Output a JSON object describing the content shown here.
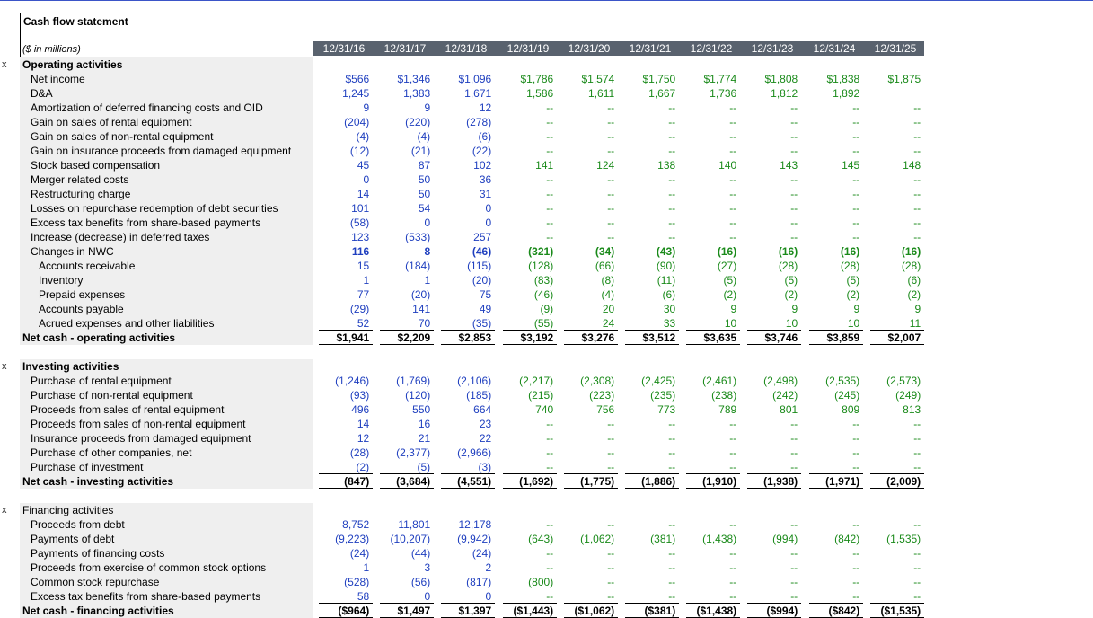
{
  "sheet": {
    "title": "Cash flow statement",
    "units": "($ in millions)",
    "row_marker": "x"
  },
  "years": [
    "12/31/16",
    "12/31/17",
    "12/31/18",
    "12/31/19",
    "12/31/20",
    "12/31/21",
    "12/31/22",
    "12/31/23",
    "12/31/24",
    "12/31/25"
  ],
  "colors": {
    "historical": "#1f3fbf",
    "projected": "#1a8a1a",
    "header_bg": "#59626e",
    "label_bg": "#efefef"
  },
  "sections": [
    {
      "title": "Operating activities",
      "title_bold": true,
      "rows": [
        {
          "label": "Net income",
          "indent": 1,
          "values": [
            "$566",
            "$1,346",
            "$1,096",
            "$1,786",
            "$1,574",
            "$1,750",
            "$1,774",
            "$1,808",
            "$1,838",
            "$1,875"
          ]
        },
        {
          "label": "D&A",
          "indent": 1,
          "values": [
            "1,245",
            "1,383",
            "1,671",
            "1,586",
            "1,611",
            "1,667",
            "1,736",
            "1,812",
            "1,892",
            ""
          ]
        },
        {
          "label": "Amortization of deferred financing costs and OID",
          "indent": 1,
          "values": [
            "9",
            "9",
            "12",
            "--",
            "--",
            "--",
            "--",
            "--",
            "--",
            "--"
          ]
        },
        {
          "label": "Gain on sales of rental equipment",
          "indent": 1,
          "values": [
            "(204)",
            "(220)",
            "(278)",
            "--",
            "--",
            "--",
            "--",
            "--",
            "--",
            "--"
          ]
        },
        {
          "label": "Gain on sales of non-rental equipment",
          "indent": 1,
          "values": [
            "(4)",
            "(4)",
            "(6)",
            "--",
            "--",
            "--",
            "--",
            "--",
            "--",
            "--"
          ]
        },
        {
          "label": "Gain on insurance proceeds from damaged equipment",
          "indent": 1,
          "values": [
            "(12)",
            "(21)",
            "(22)",
            "--",
            "--",
            "--",
            "--",
            "--",
            "--",
            "--"
          ]
        },
        {
          "label": "Stock based compensation",
          "indent": 1,
          "values": [
            "45",
            "87",
            "102",
            "141",
            "124",
            "138",
            "140",
            "143",
            "145",
            "148"
          ]
        },
        {
          "label": "Merger related costs",
          "indent": 1,
          "values": [
            "0",
            "50",
            "36",
            "--",
            "--",
            "--",
            "--",
            "--",
            "--",
            "--"
          ]
        },
        {
          "label": "Restructuring charge",
          "indent": 1,
          "values": [
            "14",
            "50",
            "31",
            "--",
            "--",
            "--",
            "--",
            "--",
            "--",
            "--"
          ]
        },
        {
          "label": "Losses on repurchase redemption of debt securities",
          "indent": 1,
          "values": [
            "101",
            "54",
            "0",
            "--",
            "--",
            "--",
            "--",
            "--",
            "--",
            "--"
          ]
        },
        {
          "label": "Excess tax benefits from share-based payments",
          "indent": 1,
          "values": [
            "(58)",
            "0",
            "0",
            "--",
            "--",
            "--",
            "--",
            "--",
            "--",
            "--"
          ]
        },
        {
          "label": "Increase (decrease) in deferred taxes",
          "indent": 1,
          "values": [
            "123",
            "(533)",
            "257",
            "--",
            "--",
            "--",
            "--",
            "--",
            "--",
            "--"
          ]
        },
        {
          "label": "Changes in NWC",
          "indent": 1,
          "bold_values": true,
          "values": [
            "116",
            "8",
            "(46)",
            "(321)",
            "(34)",
            "(43)",
            "(16)",
            "(16)",
            "(16)",
            "(16)"
          ]
        },
        {
          "label": "Accounts receivable",
          "indent": 2,
          "values": [
            "15",
            "(184)",
            "(115)",
            "(128)",
            "(66)",
            "(90)",
            "(27)",
            "(28)",
            "(28)",
            "(28)"
          ]
        },
        {
          "label": "Inventory",
          "indent": 2,
          "values": [
            "1",
            "1",
            "(20)",
            "(83)",
            "(8)",
            "(11)",
            "(5)",
            "(5)",
            "(5)",
            "(6)"
          ]
        },
        {
          "label": "Prepaid expenses",
          "indent": 2,
          "values": [
            "77",
            "(20)",
            "75",
            "(46)",
            "(4)",
            "(6)",
            "(2)",
            "(2)",
            "(2)",
            "(2)"
          ]
        },
        {
          "label": "Accounts payable",
          "indent": 2,
          "values": [
            "(29)",
            "141",
            "49",
            "(9)",
            "20",
            "30",
            "9",
            "9",
            "9",
            "9"
          ]
        },
        {
          "label": "Acrued expenses and other liabilities",
          "indent": 2,
          "underline": true,
          "values": [
            "52",
            "70",
            "(35)",
            "(55)",
            "24",
            "33",
            "10",
            "10",
            "10",
            "11"
          ]
        }
      ],
      "total": {
        "label": "Net cash - operating activities",
        "values": [
          "$1,941",
          "$2,209",
          "$2,853",
          "$3,192",
          "$3,276",
          "$3,512",
          "$3,635",
          "$3,746",
          "$3,859",
          "$2,007"
        ]
      }
    },
    {
      "title": "Investing activities",
      "title_bold": true,
      "rows": [
        {
          "label": "Purchase of rental equipment",
          "indent": 1,
          "values": [
            "(1,246)",
            "(1,769)",
            "(2,106)",
            "(2,217)",
            "(2,308)",
            "(2,425)",
            "(2,461)",
            "(2,498)",
            "(2,535)",
            "(2,573)"
          ]
        },
        {
          "label": "Purchase of non-rental equipment",
          "indent": 1,
          "values": [
            "(93)",
            "(120)",
            "(185)",
            "(215)",
            "(223)",
            "(235)",
            "(238)",
            "(242)",
            "(245)",
            "(249)"
          ]
        },
        {
          "label": "Proceeds from sales of rental equipment",
          "indent": 1,
          "values": [
            "496",
            "550",
            "664",
            "740",
            "756",
            "773",
            "789",
            "801",
            "809",
            "813"
          ]
        },
        {
          "label": "Proceeds from sales of non-rental equipment",
          "indent": 1,
          "values": [
            "14",
            "16",
            "23",
            "--",
            "--",
            "--",
            "--",
            "--",
            "--",
            "--"
          ]
        },
        {
          "label": "Insurance proceeds from damaged equipment",
          "indent": 1,
          "values": [
            "12",
            "21",
            "22",
            "--",
            "--",
            "--",
            "--",
            "--",
            "--",
            "--"
          ]
        },
        {
          "label": "Purchase of other companies, net",
          "indent": 1,
          "values": [
            "(28)",
            "(2,377)",
            "(2,966)",
            "--",
            "--",
            "--",
            "--",
            "--",
            "--",
            "--"
          ]
        },
        {
          "label": "Purchase of investment",
          "indent": 1,
          "underline": true,
          "values": [
            "(2)",
            "(5)",
            "(3)",
            "--",
            "--",
            "--",
            "--",
            "--",
            "--",
            "--"
          ]
        }
      ],
      "total": {
        "label": "Net cash - investing activities",
        "values": [
          "(847)",
          "(3,684)",
          "(4,551)",
          "(1,692)",
          "(1,775)",
          "(1,886)",
          "(1,910)",
          "(1,938)",
          "(1,971)",
          "(2,009)"
        ]
      }
    },
    {
      "title": "Financing activities",
      "title_bold": false,
      "rows": [
        {
          "label": "Proceeds from debt",
          "indent": 1,
          "values": [
            "8,752",
            "11,801",
            "12,178",
            "--",
            "--",
            "--",
            "--",
            "--",
            "--",
            "--"
          ]
        },
        {
          "label": "Payments of debt",
          "indent": 1,
          "values": [
            "(9,223)",
            "(10,207)",
            "(9,942)",
            "(643)",
            "(1,062)",
            "(381)",
            "(1,438)",
            "(994)",
            "(842)",
            "(1,535)"
          ]
        },
        {
          "label": "Payments of financing costs",
          "indent": 1,
          "values": [
            "(24)",
            "(44)",
            "(24)",
            "--",
            "--",
            "--",
            "--",
            "--",
            "--",
            "--"
          ]
        },
        {
          "label": "Proceeds from exercise of common stock options",
          "indent": 1,
          "values": [
            "1",
            "3",
            "2",
            "--",
            "--",
            "--",
            "--",
            "--",
            "--",
            "--"
          ]
        },
        {
          "label": "Common stock repurchase",
          "indent": 1,
          "values": [
            "(528)",
            "(56)",
            "(817)",
            "(800)",
            "--",
            "--",
            "--",
            "--",
            "--",
            "--"
          ]
        },
        {
          "label": "Excess tax benefits from share-based payments",
          "indent": 1,
          "underline": true,
          "values": [
            "58",
            "0",
            "0",
            "--",
            "--",
            "--",
            "--",
            "--",
            "--",
            "--"
          ]
        }
      ],
      "total": {
        "label": "Net cash - financing activities",
        "values": [
          "($964)",
          "$1,497",
          "$1,397",
          "($1,443)",
          "($1,062)",
          "($381)",
          "($1,438)",
          "($994)",
          "($842)",
          "($1,535)"
        ]
      }
    }
  ]
}
